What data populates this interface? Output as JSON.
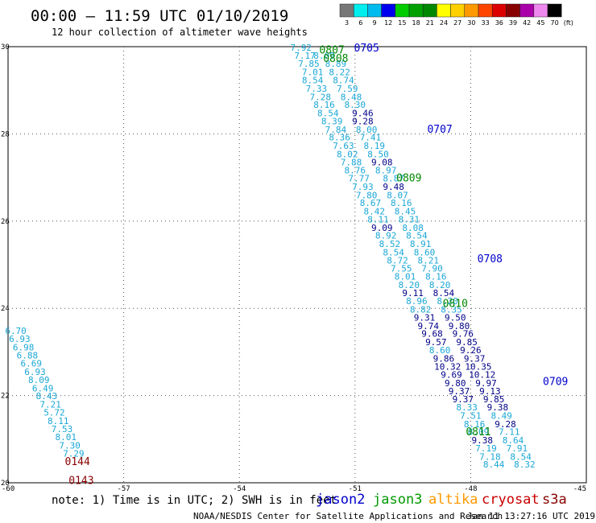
{
  "title": "00:00 – 11:59 UTC 01/10/2019",
  "subtitle": "12 hour collection of altimeter wave heights",
  "note": "note: 1) Time is in UTC; 2) SWH is in feet",
  "credit": "NOAA/NESDIS Center for Satellite Applications and Research",
  "generated": "Jan 11 13:27:16 UTC 2019",
  "satellites": [
    {
      "name": "jason2",
      "color": "#0000cc"
    },
    {
      "name": "jason3",
      "color": "#009900"
    },
    {
      "name": "altika",
      "color": "#ff9900"
    },
    {
      "name": "cryosat",
      "color": "#cc0000"
    },
    {
      "name": "s3a",
      "color": "#880000"
    }
  ],
  "colors": {
    "cyan": "#1aa7d6",
    "navy": "#000088",
    "blue": "#0000cc",
    "green": "#008800",
    "maroon": "#880000"
  },
  "scale": {
    "labels": [
      "3",
      "6",
      "9",
      "12",
      "15",
      "18",
      "21",
      "24",
      "27",
      "30",
      "33",
      "36",
      "39",
      "42",
      "45",
      "70",
      "(ft)"
    ],
    "colors": [
      "#777777",
      "#00eeee",
      "#00bbee",
      "#0000ee",
      "#00cc00",
      "#00a000",
      "#008800",
      "#ffff00",
      "#ffd000",
      "#ff9900",
      "#ff4400",
      "#dd0000",
      "#880000",
      "#aa00aa",
      "#ee88ee",
      "#000000"
    ]
  },
  "chart_data": {
    "type": "scatter",
    "x_ticks": [
      "-60",
      "-57",
      "-54",
      "-51",
      "-48",
      "-45"
    ],
    "y_ticks": [
      "30",
      "28",
      "26",
      "24",
      "22",
      "20"
    ],
    "xlim": [
      -60,
      -45
    ],
    "ylim": [
      20,
      30
    ],
    "grid": true,
    "pass_labels": [
      {
        "text": "0705",
        "x": -50.7,
        "y": 29.98,
        "color": "blue"
      },
      {
        "text": "0707",
        "x": -48.8,
        "y": 28.12,
        "color": "blue"
      },
      {
        "text": "0708",
        "x": -47.5,
        "y": 25.15,
        "color": "blue"
      },
      {
        "text": "0709",
        "x": -45.8,
        "y": 22.33,
        "color": "blue"
      },
      {
        "text": "0807",
        "x": -51.6,
        "y": 29.94,
        "color": "green"
      },
      {
        "text": "0808",
        "x": -51.5,
        "y": 29.74,
        "color": "green"
      },
      {
        "text": "0809",
        "x": -49.6,
        "y": 27.0,
        "color": "green"
      },
      {
        "text": "0810",
        "x": -48.4,
        "y": 24.12,
        "color": "green"
      },
      {
        "text": "0811",
        "x": -47.8,
        "y": 21.18,
        "color": "green"
      },
      {
        "text": "0144",
        "x": -58.2,
        "y": 20.5,
        "color": "maroon"
      },
      {
        "text": "0143",
        "x": -58.1,
        "y": 20.06,
        "color": "maroon"
      }
    ],
    "points": [
      {
        "x": -52.4,
        "y": 29.98,
        "v": "7.92",
        "c": "cyan"
      },
      {
        "x": -52.3,
        "y": 29.8,
        "v": "7.17",
        "c": "cyan"
      },
      {
        "x": -51.8,
        "y": 29.8,
        "v": "8.09",
        "c": "cyan"
      },
      {
        "x": -52.2,
        "y": 29.61,
        "v": "7.85",
        "c": "cyan"
      },
      {
        "x": -51.5,
        "y": 29.61,
        "v": "8.89",
        "c": "cyan"
      },
      {
        "x": -52.1,
        "y": 29.42,
        "v": "7.01",
        "c": "cyan"
      },
      {
        "x": -51.4,
        "y": 29.42,
        "v": "8.22",
        "c": "cyan"
      },
      {
        "x": -52.1,
        "y": 29.23,
        "v": "8.54",
        "c": "cyan"
      },
      {
        "x": -51.3,
        "y": 29.23,
        "v": "8.74",
        "c": "cyan"
      },
      {
        "x": -52.0,
        "y": 29.04,
        "v": "7.33",
        "c": "cyan"
      },
      {
        "x": -51.2,
        "y": 29.04,
        "v": "7.59",
        "c": "cyan"
      },
      {
        "x": -51.9,
        "y": 28.85,
        "v": "7.28",
        "c": "cyan"
      },
      {
        "x": -51.1,
        "y": 28.85,
        "v": "8.48",
        "c": "cyan"
      },
      {
        "x": -51.8,
        "y": 28.67,
        "v": "8.16",
        "c": "cyan"
      },
      {
        "x": -51.0,
        "y": 28.67,
        "v": "8.30",
        "c": "cyan"
      },
      {
        "x": -51.7,
        "y": 28.48,
        "v": "8.54",
        "c": "cyan"
      },
      {
        "x": -50.8,
        "y": 28.48,
        "v": "9.46",
        "c": "navy"
      },
      {
        "x": -51.6,
        "y": 28.29,
        "v": "8.39",
        "c": "cyan"
      },
      {
        "x": -50.8,
        "y": 28.29,
        "v": "9.28",
        "c": "navy"
      },
      {
        "x": -51.5,
        "y": 28.1,
        "v": "7.84",
        "c": "cyan"
      },
      {
        "x": -50.7,
        "y": 28.1,
        "v": "8.00",
        "c": "cyan"
      },
      {
        "x": -51.4,
        "y": 27.92,
        "v": "8.36",
        "c": "cyan"
      },
      {
        "x": -50.6,
        "y": 27.92,
        "v": "7.41",
        "c": "cyan"
      },
      {
        "x": -51.3,
        "y": 27.73,
        "v": "7.63",
        "c": "cyan"
      },
      {
        "x": -50.5,
        "y": 27.73,
        "v": "8.19",
        "c": "cyan"
      },
      {
        "x": -51.2,
        "y": 27.54,
        "v": "8.02",
        "c": "cyan"
      },
      {
        "x": -50.4,
        "y": 27.54,
        "v": "8.50",
        "c": "cyan"
      },
      {
        "x": -51.1,
        "y": 27.35,
        "v": "7.88",
        "c": "cyan"
      },
      {
        "x": -50.3,
        "y": 27.35,
        "v": "9.08",
        "c": "navy"
      },
      {
        "x": -51.0,
        "y": 27.17,
        "v": "8.76",
        "c": "cyan"
      },
      {
        "x": -50.2,
        "y": 27.17,
        "v": "8.97",
        "c": "cyan"
      },
      {
        "x": -50.9,
        "y": 26.98,
        "v": "7.77",
        "c": "cyan"
      },
      {
        "x": -50.0,
        "y": 26.98,
        "v": "8.87",
        "c": "cyan"
      },
      {
        "x": -50.8,
        "y": 26.79,
        "v": "7.93",
        "c": "cyan"
      },
      {
        "x": -50.0,
        "y": 26.79,
        "v": "9.48",
        "c": "navy"
      },
      {
        "x": -50.7,
        "y": 26.6,
        "v": "7.80",
        "c": "cyan"
      },
      {
        "x": -49.9,
        "y": 26.6,
        "v": "8.07",
        "c": "cyan"
      },
      {
        "x": -50.6,
        "y": 26.42,
        "v": "8.67",
        "c": "cyan"
      },
      {
        "x": -49.8,
        "y": 26.42,
        "v": "8.16",
        "c": "cyan"
      },
      {
        "x": -50.5,
        "y": 26.23,
        "v": "8.42",
        "c": "cyan"
      },
      {
        "x": -49.7,
        "y": 26.23,
        "v": "8.45",
        "c": "cyan"
      },
      {
        "x": -50.4,
        "y": 26.04,
        "v": "8.11",
        "c": "cyan"
      },
      {
        "x": -49.6,
        "y": 26.04,
        "v": "8.31",
        "c": "cyan"
      },
      {
        "x": -50.3,
        "y": 25.85,
        "v": "9.09",
        "c": "navy"
      },
      {
        "x": -49.5,
        "y": 25.85,
        "v": "8.08",
        "c": "cyan"
      },
      {
        "x": -50.2,
        "y": 25.67,
        "v": "8.92",
        "c": "cyan"
      },
      {
        "x": -49.4,
        "y": 25.67,
        "v": "8.54",
        "c": "cyan"
      },
      {
        "x": -50.1,
        "y": 25.48,
        "v": "8.52",
        "c": "cyan"
      },
      {
        "x": -49.3,
        "y": 25.48,
        "v": "8.91",
        "c": "cyan"
      },
      {
        "x": -50.0,
        "y": 25.29,
        "v": "8.54",
        "c": "cyan"
      },
      {
        "x": -49.2,
        "y": 25.29,
        "v": "8.60",
        "c": "cyan"
      },
      {
        "x": -49.9,
        "y": 25.1,
        "v": "8.72",
        "c": "cyan"
      },
      {
        "x": -49.1,
        "y": 25.1,
        "v": "8.21",
        "c": "cyan"
      },
      {
        "x": -49.8,
        "y": 24.92,
        "v": "7.55",
        "c": "cyan"
      },
      {
        "x": -49.0,
        "y": 24.92,
        "v": "7.90",
        "c": "cyan"
      },
      {
        "x": -49.7,
        "y": 24.73,
        "v": "8.01",
        "c": "cyan"
      },
      {
        "x": -48.9,
        "y": 24.73,
        "v": "8.16",
        "c": "cyan"
      },
      {
        "x": -49.6,
        "y": 24.54,
        "v": "8.20",
        "c": "cyan"
      },
      {
        "x": -48.8,
        "y": 24.54,
        "v": "8.20",
        "c": "cyan"
      },
      {
        "x": -49.5,
        "y": 24.35,
        "v": "9.11",
        "c": "navy"
      },
      {
        "x": -48.7,
        "y": 24.35,
        "v": "8.54",
        "c": "navy"
      },
      {
        "x": -49.4,
        "y": 24.17,
        "v": "8.96",
        "c": "cyan"
      },
      {
        "x": -48.6,
        "y": 24.17,
        "v": "8.20",
        "c": "cyan"
      },
      {
        "x": -49.3,
        "y": 23.98,
        "v": "8.82",
        "c": "cyan"
      },
      {
        "x": -48.5,
        "y": 23.98,
        "v": "8.35",
        "c": "cyan"
      },
      {
        "x": -49.2,
        "y": 23.79,
        "v": "9.31",
        "c": "navy"
      },
      {
        "x": -48.4,
        "y": 23.79,
        "v": "9.50",
        "c": "navy"
      },
      {
        "x": -49.1,
        "y": 23.6,
        "v": "9.74",
        "c": "navy"
      },
      {
        "x": -48.3,
        "y": 23.6,
        "v": "9.80",
        "c": "navy"
      },
      {
        "x": -49.0,
        "y": 23.42,
        "v": "9.68",
        "c": "navy"
      },
      {
        "x": -48.2,
        "y": 23.42,
        "v": "9.76",
        "c": "navy"
      },
      {
        "x": -48.9,
        "y": 23.23,
        "v": "9.57",
        "c": "navy"
      },
      {
        "x": -48.1,
        "y": 23.23,
        "v": "9.85",
        "c": "navy"
      },
      {
        "x": -48.8,
        "y": 23.04,
        "v": "8.60",
        "c": "cyan"
      },
      {
        "x": -48.0,
        "y": 23.04,
        "v": "9.26",
        "c": "navy"
      },
      {
        "x": -48.7,
        "y": 22.85,
        "v": "9.86",
        "c": "navy"
      },
      {
        "x": -47.9,
        "y": 22.85,
        "v": "9.37",
        "c": "navy"
      },
      {
        "x": -48.6,
        "y": 22.67,
        "v": "10.32",
        "c": "navy"
      },
      {
        "x": -47.8,
        "y": 22.67,
        "v": "10.35",
        "c": "navy"
      },
      {
        "x": -48.5,
        "y": 22.48,
        "v": "9.69",
        "c": "navy"
      },
      {
        "x": -47.7,
        "y": 22.48,
        "v": "10.12",
        "c": "navy"
      },
      {
        "x": -48.4,
        "y": 22.29,
        "v": "9.80",
        "c": "navy"
      },
      {
        "x": -47.6,
        "y": 22.29,
        "v": "9.97",
        "c": "navy"
      },
      {
        "x": -48.3,
        "y": 22.1,
        "v": "9.37",
        "c": "navy"
      },
      {
        "x": -47.5,
        "y": 22.1,
        "v": "9.13",
        "c": "navy"
      },
      {
        "x": -48.2,
        "y": 21.92,
        "v": "9.37",
        "c": "navy"
      },
      {
        "x": -47.4,
        "y": 21.92,
        "v": "9.85",
        "c": "navy"
      },
      {
        "x": -48.1,
        "y": 21.73,
        "v": "8.33",
        "c": "cyan"
      },
      {
        "x": -47.3,
        "y": 21.73,
        "v": "9.38",
        "c": "navy"
      },
      {
        "x": -48.0,
        "y": 21.54,
        "v": "7.51",
        "c": "cyan"
      },
      {
        "x": -47.2,
        "y": 21.54,
        "v": "8.49",
        "c": "cyan"
      },
      {
        "x": -47.9,
        "y": 21.35,
        "v": "8.16",
        "c": "cyan"
      },
      {
        "x": -47.1,
        "y": 21.35,
        "v": "9.28",
        "c": "navy"
      },
      {
        "x": -47.8,
        "y": 21.17,
        "v": "8.09",
        "c": "cyan"
      },
      {
        "x": -47.0,
        "y": 21.17,
        "v": "7.11",
        "c": "cyan"
      },
      {
        "x": -47.7,
        "y": 20.98,
        "v": "9.38",
        "c": "navy"
      },
      {
        "x": -46.9,
        "y": 20.98,
        "v": "8.64",
        "c": "cyan"
      },
      {
        "x": -47.6,
        "y": 20.79,
        "v": "7.19",
        "c": "cyan"
      },
      {
        "x": -46.8,
        "y": 20.79,
        "v": "7.91",
        "c": "cyan"
      },
      {
        "x": -47.5,
        "y": 20.6,
        "v": "7.18",
        "c": "cyan"
      },
      {
        "x": -46.7,
        "y": 20.6,
        "v": "8.54",
        "c": "cyan"
      },
      {
        "x": -47.4,
        "y": 20.42,
        "v": "8.44",
        "c": "cyan"
      },
      {
        "x": -46.6,
        "y": 20.42,
        "v": "8.32",
        "c": "cyan"
      },
      {
        "x": -59.8,
        "y": 23.49,
        "v": "6.70",
        "c": "cyan"
      },
      {
        "x": -59.7,
        "y": 23.3,
        "v": "6.93",
        "c": "cyan"
      },
      {
        "x": -59.6,
        "y": 23.11,
        "v": "6.98",
        "c": "cyan"
      },
      {
        "x": -59.5,
        "y": 22.92,
        "v": "6.88",
        "c": "cyan"
      },
      {
        "x": -59.4,
        "y": 22.74,
        "v": "6.69",
        "c": "cyan"
      },
      {
        "x": -59.3,
        "y": 22.55,
        "v": "6.93",
        "c": "cyan"
      },
      {
        "x": -59.2,
        "y": 22.36,
        "v": "8.09",
        "c": "cyan"
      },
      {
        "x": -59.1,
        "y": 22.17,
        "v": "6.49",
        "c": "cyan"
      },
      {
        "x": -59.0,
        "y": 21.99,
        "v": "8.43",
        "c": "cyan"
      },
      {
        "x": -58.9,
        "y": 21.8,
        "v": "7.21",
        "c": "cyan"
      },
      {
        "x": -58.8,
        "y": 21.61,
        "v": "5.72",
        "c": "cyan"
      },
      {
        "x": -58.7,
        "y": 21.42,
        "v": "8.11",
        "c": "cyan"
      },
      {
        "x": -58.6,
        "y": 21.24,
        "v": "7.53",
        "c": "cyan"
      },
      {
        "x": -58.5,
        "y": 21.05,
        "v": "8.01",
        "c": "cyan"
      },
      {
        "x": -58.4,
        "y": 20.86,
        "v": "7.30",
        "c": "cyan"
      },
      {
        "x": -58.3,
        "y": 20.67,
        "v": "7.29",
        "c": "cyan"
      }
    ]
  }
}
